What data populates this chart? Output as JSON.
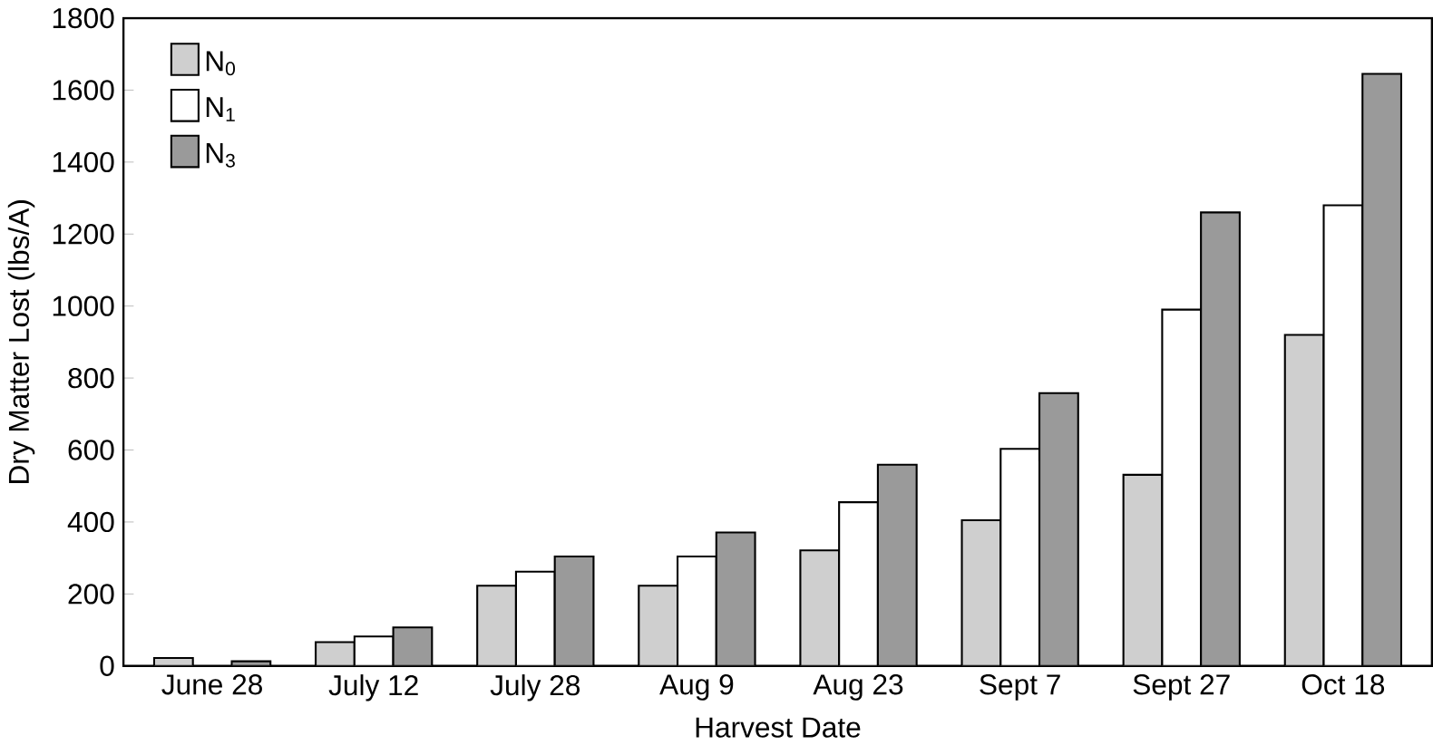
{
  "chart_data": {
    "type": "bar",
    "xlabel": "Harvest Date",
    "ylabel": "Dry Matter Lost (lbs/A)",
    "categories": [
      "June 28",
      "July 12",
      "July 28",
      "Aug 9",
      "Aug 23",
      "Sept 7",
      "Sept 27",
      "Oct 18"
    ],
    "series": [
      {
        "name": "N$_{0}$",
        "color": "#cfcfcf",
        "values": [
          22,
          66,
          223,
          223,
          321,
          405,
          531,
          920
        ]
      },
      {
        "name": "N$_{1}$",
        "color": "#ffffff",
        "values": [
          null,
          82,
          262,
          304,
          455,
          603,
          990,
          1280
        ]
      },
      {
        "name": "N$_{3}$",
        "color": "#9a9a9a",
        "values": [
          13,
          107,
          304,
          371,
          559,
          758,
          1260,
          1645
        ]
      }
    ],
    "ylim": [
      0,
      1800
    ],
    "yticks": [
      0,
      200,
      400,
      600,
      800,
      1000,
      1200,
      1400,
      1600,
      1800
    ],
    "grid": false,
    "legend": "top left"
  }
}
